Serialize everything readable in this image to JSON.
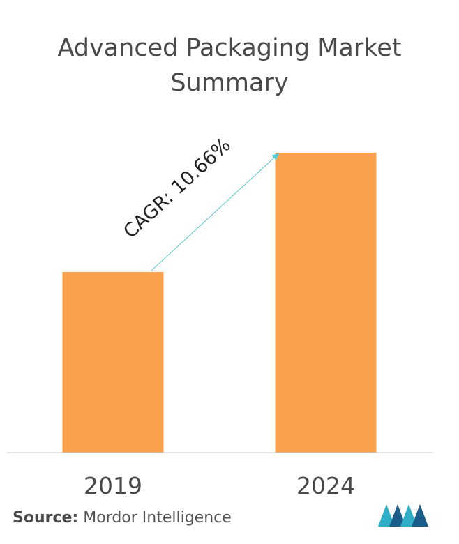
{
  "chart_data": {
    "type": "bar",
    "title_lines": [
      "Advanced Packaging Market",
      "Summary"
    ],
    "categories": [
      "2019",
      "2024"
    ],
    "values": [
      1.0,
      1.66
    ],
    "bar_color": "#F9A14A",
    "annotation": "CAGR: 10.66%",
    "arrow_color": "#5BC7D3",
    "axis_color": "#cccccc",
    "ylim": [
      0,
      1.7
    ],
    "grid": false
  },
  "source": {
    "label": "Source:",
    "text": "Mordor Intelligence"
  },
  "logo": {
    "icon": "mordor-intelligence-logo",
    "colors": [
      "#2EAFC7",
      "#1A5C8A"
    ]
  }
}
